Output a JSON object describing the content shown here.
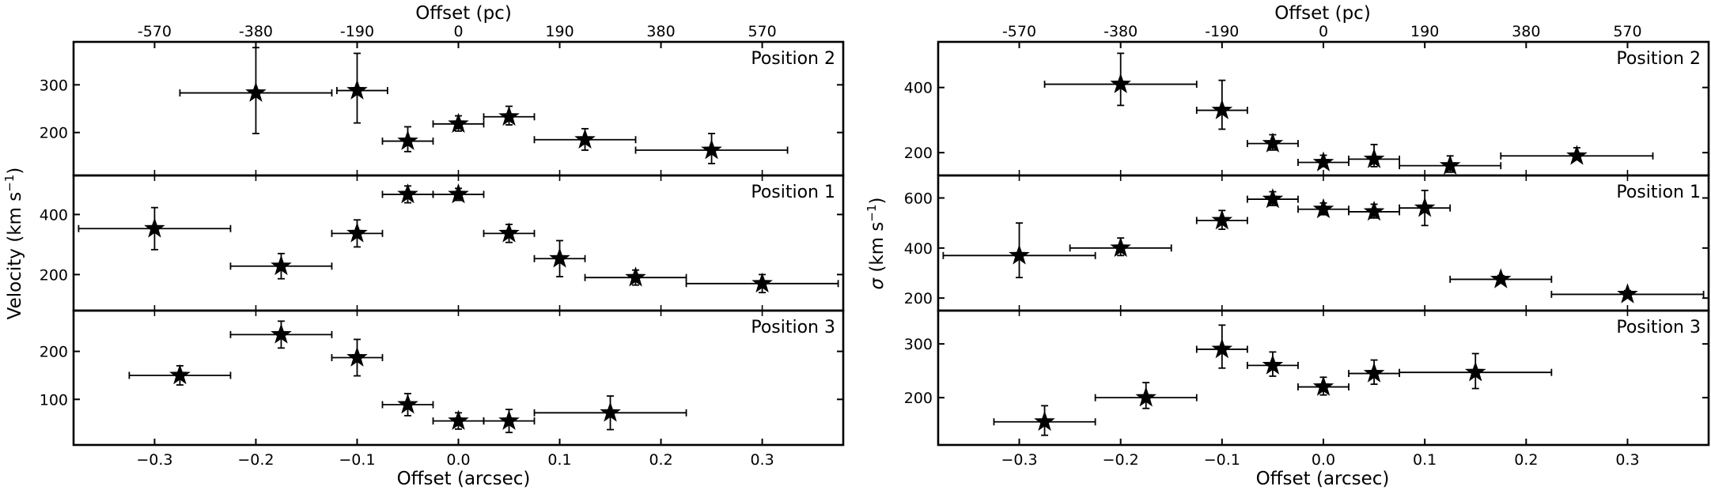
{
  "figure": {
    "ylabel_left": "Velocity (km s",
    "ylabel_left_sup": "−1",
    "ylabel_left_close": ")",
    "ylabel_right_sigma": "σ",
    "ylabel_right_rest": " (km s",
    "ylabel_right_sup": "−1",
    "ylabel_right_close": ")",
    "xlabel_bottom": "Offset (arcsec)",
    "xlabel_top": "Offset (pc)"
  },
  "chart_data": [
    {
      "type": "scatter",
      "quantity": "velocity",
      "column": "left",
      "xlim": [
        -0.38,
        0.38
      ],
      "x_ticks": [
        -0.3,
        -0.2,
        -0.1,
        0.0,
        0.1,
        0.2,
        0.3
      ],
      "x_tick_labels": [
        "−0.3",
        "−0.2",
        "−0.1",
        "0.0",
        "0.1",
        "0.2",
        "0.3"
      ],
      "top_ticks_arcsec": [
        -0.3,
        -0.2,
        -0.1,
        0.0,
        0.1,
        0.2,
        0.3
      ],
      "top_tick_labels": [
        "-570",
        "-380",
        "-190",
        "0",
        "190",
        "380",
        "570"
      ],
      "panels": [
        {
          "label": "Position 2",
          "ylim": [
            110,
            390
          ],
          "y_ticks": [
            200,
            300
          ],
          "y_tick_labels": [
            "200",
            "300"
          ],
          "points": [
            {
              "x": -0.2,
              "xerr": [
                0.075,
                0.075
              ],
              "y": 283,
              "yerr": [
                85,
                95
              ]
            },
            {
              "x": -0.1,
              "xerr": [
                0.02,
                0.03
              ],
              "y": 288,
              "yerr": [
                68,
                78
              ]
            },
            {
              "x": -0.05,
              "xerr": [
                0.025,
                0.025
              ],
              "y": 182,
              "yerr": [
                22,
                30
              ]
            },
            {
              "x": 0.0,
              "xerr": [
                0.025,
                0.025
              ],
              "y": 218,
              "yerr": [
                15,
                17
              ]
            },
            {
              "x": 0.05,
              "xerr": [
                0.025,
                0.025
              ],
              "y": 233,
              "yerr": [
                17,
                22
              ]
            },
            {
              "x": 0.125,
              "xerr": [
                0.05,
                0.05
              ],
              "y": 185,
              "yerr": [
                22,
                23
              ]
            },
            {
              "x": 0.25,
              "xerr": [
                0.075,
                0.075
              ],
              "y": 163,
              "yerr": [
                28,
                35
              ]
            }
          ]
        },
        {
          "label": "Position 1",
          "ylim": [
            80,
            530
          ],
          "y_ticks": [
            200,
            400
          ],
          "y_tick_labels": [
            "200",
            "400"
          ],
          "points": [
            {
              "x": -0.3,
              "xerr": [
                0.075,
                0.075
              ],
              "y": 353,
              "yerr": [
                70,
                70
              ]
            },
            {
              "x": -0.175,
              "xerr": [
                0.05,
                0.05
              ],
              "y": 228,
              "yerr": [
                42,
                42
              ]
            },
            {
              "x": -0.1,
              "xerr": [
                0.025,
                0.025
              ],
              "y": 337,
              "yerr": [
                45,
                45
              ]
            },
            {
              "x": -0.05,
              "xerr": [
                0.025,
                0.025
              ],
              "y": 467,
              "yerr": [
                28,
                28
              ]
            },
            {
              "x": 0.0,
              "xerr": [
                0.025,
                0.025
              ],
              "y": 467,
              "yerr": [
                20,
                20
              ]
            },
            {
              "x": 0.05,
              "xerr": [
                0.025,
                0.025
              ],
              "y": 337,
              "yerr": [
                30,
                30
              ]
            },
            {
              "x": 0.1,
              "xerr": [
                0.025,
                0.025
              ],
              "y": 253,
              "yerr": [
                60,
                60
              ]
            },
            {
              "x": 0.175,
              "xerr": [
                0.05,
                0.05
              ],
              "y": 190,
              "yerr": [
                25,
                25
              ]
            },
            {
              "x": 0.3,
              "xerr": [
                0.075,
                0.075
              ],
              "y": 170,
              "yerr": [
                30,
                30
              ]
            }
          ]
        },
        {
          "label": "Position 3",
          "ylim": [
            5,
            285
          ],
          "y_ticks": [
            100,
            200
          ],
          "y_tick_labels": [
            "100",
            "200"
          ],
          "points": [
            {
              "x": -0.275,
              "xerr": [
                0.05,
                0.05
              ],
              "y": 150,
              "yerr": [
                20,
                20
              ]
            },
            {
              "x": -0.175,
              "xerr": [
                0.05,
                0.05
              ],
              "y": 235,
              "yerr": [
                28,
                28
              ]
            },
            {
              "x": -0.1,
              "xerr": [
                0.025,
                0.025
              ],
              "y": 187,
              "yerr": [
                38,
                38
              ]
            },
            {
              "x": -0.05,
              "xerr": [
                0.025,
                0.025
              ],
              "y": 89,
              "yerr": [
                23,
                23
              ]
            },
            {
              "x": 0.0,
              "xerr": [
                0.025,
                0.025
              ],
              "y": 55,
              "yerr": [
                17,
                17
              ]
            },
            {
              "x": 0.05,
              "xerr": [
                0.025,
                0.025
              ],
              "y": 55,
              "yerr": [
                24,
                24
              ]
            },
            {
              "x": 0.15,
              "xerr": [
                0.075,
                0.075
              ],
              "y": 72,
              "yerr": [
                35,
                35
              ]
            }
          ]
        }
      ]
    },
    {
      "type": "scatter",
      "quantity": "sigma",
      "column": "right",
      "xlim": [
        -0.38,
        0.38
      ],
      "x_ticks": [
        -0.3,
        -0.2,
        -0.1,
        0.0,
        0.1,
        0.2,
        0.3
      ],
      "x_tick_labels": [
        "−0.3",
        "−0.2",
        "−0.1",
        "0.0",
        "0.1",
        "0.2",
        "0.3"
      ],
      "top_ticks_arcsec": [
        -0.3,
        -0.2,
        -0.1,
        0.0,
        0.1,
        0.2,
        0.3
      ],
      "top_tick_labels": [
        "-570",
        "-380",
        "-190",
        "0",
        "190",
        "380",
        "570"
      ],
      "panels": [
        {
          "label": "Position 2",
          "ylim": [
            130,
            540
          ],
          "y_ticks": [
            200,
            400
          ],
          "y_tick_labels": [
            "200",
            "400"
          ],
          "points": [
            {
              "x": -0.2,
              "xerr": [
                0.075,
                0.075
              ],
              "y": 410,
              "yerr": [
                65,
                95
              ]
            },
            {
              "x": -0.1,
              "xerr": [
                0.025,
                0.025
              ],
              "y": 330,
              "yerr": [
                58,
                92
              ]
            },
            {
              "x": -0.05,
              "xerr": [
                0.025,
                0.025
              ],
              "y": 228,
              "yerr": [
                20,
                27
              ]
            },
            {
              "x": 0.0,
              "xerr": [
                0.025,
                0.025
              ],
              "y": 170,
              "yerr": [
                13,
                22
              ]
            },
            {
              "x": 0.05,
              "xerr": [
                0.025,
                0.025
              ],
              "y": 180,
              "yerr": [
                23,
                45
              ]
            },
            {
              "x": 0.125,
              "xerr": [
                0.05,
                0.05
              ],
              "y": 160,
              "yerr": [
                20,
                30
              ]
            },
            {
              "x": 0.25,
              "xerr": [
                0.075,
                0.075
              ],
              "y": 190,
              "yerr": [
                12,
                25
              ]
            }
          ]
        },
        {
          "label": "Position 1",
          "ylim": [
            150,
            690
          ],
          "y_ticks": [
            200,
            400,
            600
          ],
          "y_tick_labels": [
            "200",
            "400",
            "600"
          ],
          "points": [
            {
              "x": -0.3,
              "xerr": [
                0.075,
                0.075
              ],
              "y": 370,
              "yerr": [
                88,
                130
              ]
            },
            {
              "x": -0.2,
              "xerr": [
                0.05,
                0.05
              ],
              "y": 400,
              "yerr": [
                30,
                40
              ]
            },
            {
              "x": -0.1,
              "xerr": [
                0.025,
                0.025
              ],
              "y": 510,
              "yerr": [
                35,
                40
              ]
            },
            {
              "x": -0.05,
              "xerr": [
                0.025,
                0.025
              ],
              "y": 595,
              "yerr": [
                25,
                30
              ]
            },
            {
              "x": 0.0,
              "xerr": [
                0.025,
                0.025
              ],
              "y": 555,
              "yerr": [
                22,
                25
              ]
            },
            {
              "x": 0.05,
              "xerr": [
                0.025,
                0.025
              ],
              "y": 545,
              "yerr": [
                25,
                30
              ]
            },
            {
              "x": 0.1,
              "xerr": [
                0.025,
                0.025
              ],
              "y": 560,
              "yerr": [
                70,
                70
              ]
            },
            {
              "x": 0.175,
              "xerr": [
                0.05,
                0.05
              ],
              "y": 275,
              "yerr": [
                15,
                15
              ]
            },
            {
              "x": 0.3,
              "xerr": [
                0.075,
                0.075
              ],
              "y": 215,
              "yerr": [
                15,
                15
              ]
            }
          ]
        },
        {
          "label": "Position 3",
          "ylim": [
            112,
            362
          ],
          "y_ticks": [
            200,
            300
          ],
          "y_tick_labels": [
            "200",
            "300"
          ],
          "points": [
            {
              "x": -0.275,
              "xerr": [
                0.05,
                0.05
              ],
              "y": 155,
              "yerr": [
                25,
                30
              ]
            },
            {
              "x": -0.175,
              "xerr": [
                0.05,
                0.05
              ],
              "y": 200,
              "yerr": [
                20,
                28
              ]
            },
            {
              "x": -0.1,
              "xerr": [
                0.025,
                0.025
              ],
              "y": 290,
              "yerr": [
                35,
                45
              ]
            },
            {
              "x": -0.05,
              "xerr": [
                0.025,
                0.025
              ],
              "y": 260,
              "yerr": [
                20,
                25
              ]
            },
            {
              "x": 0.0,
              "xerr": [
                0.025,
                0.025
              ],
              "y": 220,
              "yerr": [
                15,
                18
              ]
            },
            {
              "x": 0.05,
              "xerr": [
                0.025,
                0.025
              ],
              "y": 245,
              "yerr": [
                20,
                25
              ]
            },
            {
              "x": 0.15,
              "xerr": [
                0.075,
                0.075
              ],
              "y": 247,
              "yerr": [
                30,
                35
              ]
            }
          ]
        }
      ]
    }
  ]
}
